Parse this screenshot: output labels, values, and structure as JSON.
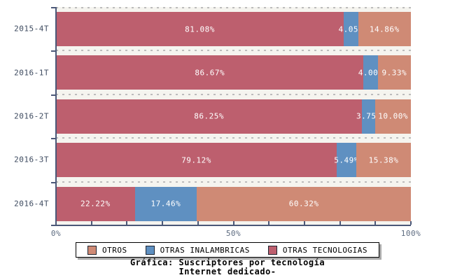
{
  "chart_data": {
    "type": "bar",
    "orientation": "horizontal",
    "stacked": true,
    "grid": "horizontal-dashed",
    "title_lines": [
      "Gráfica: Suscriptores por tecnología",
      "Internet dedicado-"
    ],
    "categories": [
      "2015-4T",
      "2016-1T",
      "2016-2T",
      "2016-3T",
      "2016-4T"
    ],
    "series": [
      {
        "name": "OTRAS TECNOLOGIAS",
        "color": "#bd5f6e",
        "values": [
          81.08,
          86.67,
          86.25,
          79.12,
          22.22
        ],
        "labels": [
          "81.08%",
          "86.67%",
          "86.25%",
          "79.12%",
          "22.22%"
        ]
      },
      {
        "name": "OTRAS INALAMBRICAS",
        "color": "#5f90c1",
        "values": [
          4.05,
          4.0,
          3.75,
          5.49,
          17.46
        ],
        "labels": [
          "4.05%",
          "4.00%",
          "3.75%",
          "5.49%",
          "17.46%"
        ]
      },
      {
        "name": "OTROS",
        "color": "#cf8a75",
        "values": [
          14.86,
          9.33,
          10.0,
          15.38,
          60.32
        ],
        "labels": [
          "14.86%",
          "9.33%",
          "10.00%",
          "15.38%",
          "60.32%"
        ]
      }
    ],
    "xlim": [
      0,
      100
    ],
    "x_tick_labels": [
      {
        "value": 0,
        "label": "0%"
      },
      {
        "value": 50,
        "label": "50%"
      },
      {
        "value": 100,
        "label": "100%"
      }
    ],
    "minor_tick_step": 10,
    "legend": {
      "position": "bottom",
      "items": [
        {
          "label": "OTROS",
          "color": "#cf8a75"
        },
        {
          "label": "OTRAS INALAMBRICAS",
          "color": "#5f90c1"
        },
        {
          "label": "OTRAS TECNOLOGIAS",
          "color": "#bd5f6e"
        }
      ]
    }
  },
  "style": {
    "axis_color": "#4b5878",
    "grid_color": "#bcbcbc",
    "band_background": "#f5f4ef",
    "figure_background": "#ffffff",
    "bar_label_color": "#ffffff",
    "category_label_color": "#3d4a5f",
    "tick_label_color": "#5d6b80"
  }
}
